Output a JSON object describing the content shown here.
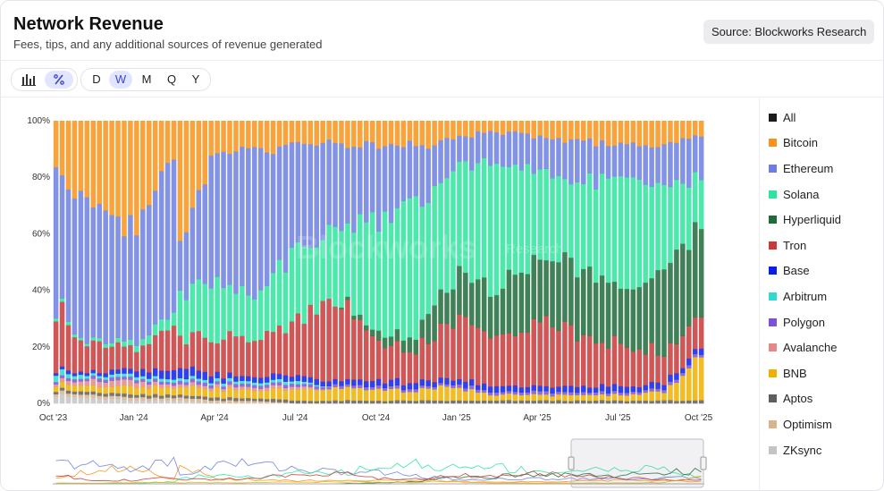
{
  "header": {
    "title": "Network Revenue",
    "subtitle": "Fees, tips, and any additional sources of revenue generated",
    "source": "Source: Blockworks Research"
  },
  "toolbar": {
    "view_icons": [
      "bar-chart-icon",
      "percent-icon"
    ],
    "active_view": "percent",
    "periods": [
      "D",
      "W",
      "M",
      "Q",
      "Y"
    ],
    "active_period": "W"
  },
  "watermark": {
    "brand": "Blockworks",
    "suffix": "Research"
  },
  "legend": [
    {
      "label": "All",
      "color": "#1b1b1b"
    },
    {
      "label": "Bitcoin",
      "color": "#f7931a"
    },
    {
      "label": "Ethereum",
      "color": "#6c7fe0"
    },
    {
      "label": "Solana",
      "color": "#2ee59d"
    },
    {
      "label": "Hyperliquid",
      "color": "#1f6b3a"
    },
    {
      "label": "Tron",
      "color": "#c73a3a"
    },
    {
      "label": "Base",
      "color": "#0a1eea"
    },
    {
      "label": "Arbitrum",
      "color": "#2fd9d0"
    },
    {
      "label": "Polygon",
      "color": "#7b52d6"
    },
    {
      "label": "Avalanche",
      "color": "#e28a8a"
    },
    {
      "label": "BNB",
      "color": "#f0b000"
    },
    {
      "label": "Aptos",
      "color": "#5e5e5e"
    },
    {
      "label": "Optimism",
      "color": "#d8b48c"
    },
    {
      "label": "ZKsync",
      "color": "#c4c4c4"
    }
  ],
  "chart_data": {
    "type": "bar",
    "stacked": true,
    "normalized": true,
    "x_tick_labels": [
      "Oct '23",
      "Jan '24",
      "Apr '24",
      "Jul '24",
      "Oct '24",
      "Jan '25",
      "Apr '25",
      "Jul '25",
      "Oct '25"
    ],
    "y_tick_labels": [
      "0%",
      "20%",
      "40%",
      "60%",
      "80%",
      "100%"
    ],
    "ylim": [
      0,
      100
    ],
    "grid": false,
    "legend_position": "right",
    "stack_order": [
      "ZKsync",
      "Optimism",
      "Aptos",
      "BNB",
      "Avalanche",
      "Polygon",
      "Arbitrum",
      "Base",
      "Tron",
      "Hyperliquid",
      "Solana",
      "Ethereum",
      "Bitcoin"
    ],
    "keyframes": {
      "week_index": [
        0,
        6,
        13,
        19,
        20,
        26,
        32,
        39,
        45,
        52,
        58,
        61,
        65,
        71,
        78,
        85,
        91,
        98,
        104
      ],
      "ZKsync": [
        3,
        2,
        1,
        1,
        1,
        0,
        0,
        0,
        0,
        0,
        0,
        0,
        0,
        0,
        0,
        0,
        0,
        0,
        0
      ],
      "Optimism": [
        1,
        1,
        1,
        1,
        1,
        1,
        1,
        0,
        0,
        0,
        0,
        0,
        0,
        0,
        0,
        0,
        0,
        0,
        0
      ],
      "Aptos": [
        1,
        1,
        1,
        1,
        1,
        1,
        1,
        1,
        1,
        1,
        1,
        1,
        1,
        1,
        1,
        1,
        1,
        1,
        1
      ],
      "BNB": [
        2,
        2,
        3,
        3,
        3,
        3,
        3,
        4,
        5,
        4,
        3,
        5,
        4,
        2,
        2,
        2,
        2,
        3,
        16
      ],
      "Avalanche": [
        1,
        2,
        2,
        1,
        1,
        1,
        1,
        1,
        0,
        0,
        0,
        0,
        0,
        0,
        0,
        0,
        0,
        0,
        0
      ],
      "Polygon": [
        1,
        1,
        1,
        1,
        1,
        1,
        1,
        1,
        1,
        1,
        1,
        1,
        1,
        1,
        1,
        1,
        1,
        1,
        1
      ],
      "Arbitrum": [
        2,
        1,
        1,
        1,
        1,
        1,
        1,
        1,
        0,
        0,
        0,
        0,
        0,
        0,
        0,
        0,
        0,
        0,
        0
      ],
      "Base": [
        1,
        1,
        2,
        3,
        4,
        2,
        2,
        2,
        2,
        2,
        2,
        2,
        2,
        2,
        2,
        2,
        2,
        2,
        2
      ],
      "Tron": [
        20,
        10,
        8,
        15,
        10,
        12,
        14,
        20,
        30,
        12,
        12,
        15,
        22,
        18,
        25,
        18,
        14,
        10,
        12
      ],
      "Hyperliquid": [
        0,
        0,
        0,
        0,
        0,
        0,
        0,
        0,
        0,
        3,
        5,
        12,
        15,
        18,
        22,
        24,
        20,
        28,
        30
      ],
      "Solana": [
        1,
        1,
        2,
        5,
        15,
        20,
        15,
        25,
        25,
        40,
        48,
        40,
        40,
        42,
        30,
        30,
        40,
        33,
        18
      ],
      "Ethereum": [
        50,
        45,
        38,
        56,
        20,
        48,
        50,
        37,
        28,
        28,
        20,
        15,
        10,
        12,
        12,
        14,
        12,
        14,
        14
      ],
      "Bitcoin": [
        17,
        33,
        40,
        13,
        43,
        10,
        11,
        8,
        8,
        9,
        8,
        9,
        5,
        4,
        5,
        8,
        8,
        8,
        6
      ]
    }
  }
}
